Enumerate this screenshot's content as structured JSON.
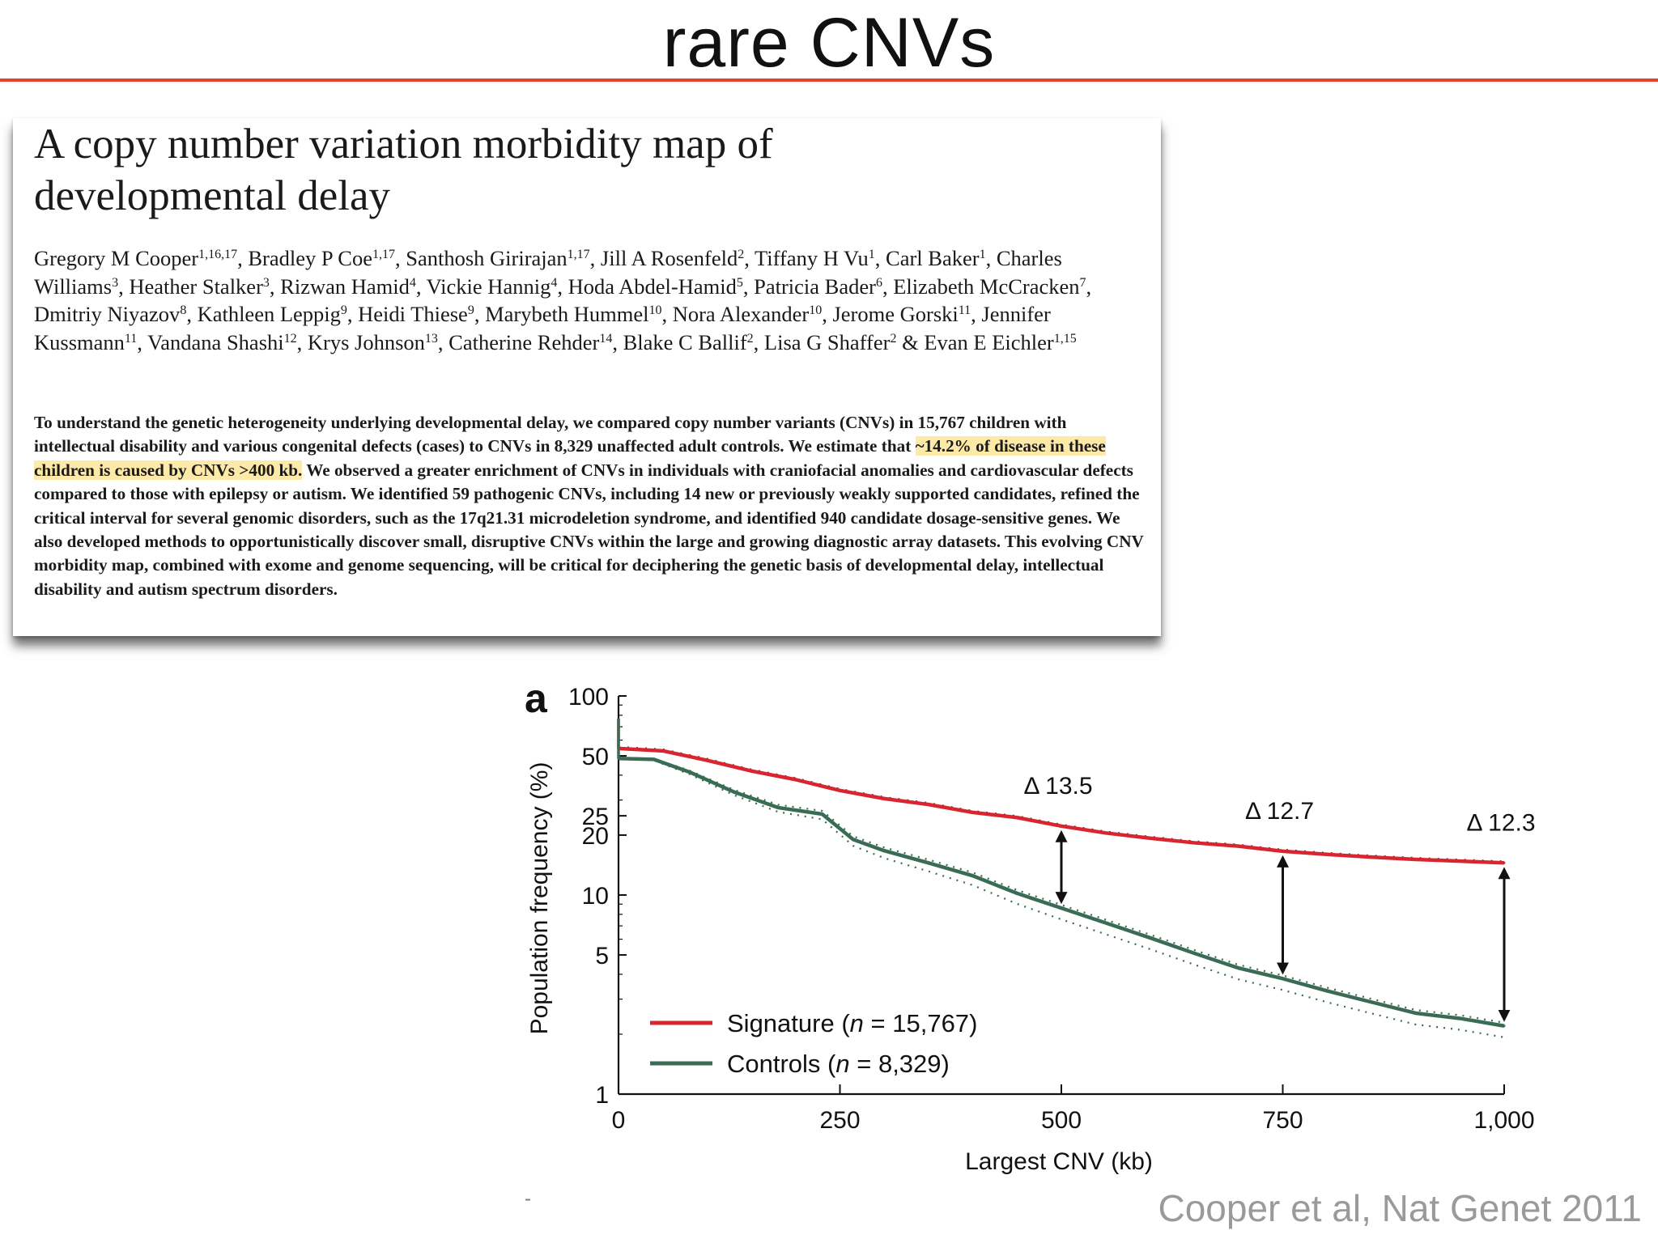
{
  "slide": {
    "title": "rare CNVs",
    "credit": "Cooper et al, Nat Genet 2011",
    "stray_mark": "-",
    "accent_color": "#e8402c"
  },
  "paper": {
    "title_line1": "A copy number variation morbidity map of",
    "title_line2": "developmental delay",
    "authors": [
      {
        "name": "Gregory M Cooper",
        "sup": "1,16,17",
        "sep": ", "
      },
      {
        "name": "Bradley P Coe",
        "sup": "1,17",
        "sep": ", "
      },
      {
        "name": "Santhosh Girirajan",
        "sup": "1,17",
        "sep": ", "
      },
      {
        "name": "Jill A Rosenfeld",
        "sup": "2",
        "sep": ", "
      },
      {
        "name": "Tiffany H Vu",
        "sup": "1",
        "sep": ", "
      },
      {
        "name": "Carl Baker",
        "sup": "1",
        "sep": ", "
      },
      {
        "name": "Charles Williams",
        "sup": "3",
        "sep": ", "
      },
      {
        "name": "Heather Stalker",
        "sup": "3",
        "sep": ", "
      },
      {
        "name": "Rizwan Hamid",
        "sup": "4",
        "sep": ", "
      },
      {
        "name": "Vickie Hannig",
        "sup": "4",
        "sep": ", "
      },
      {
        "name": "Hoda Abdel-Hamid",
        "sup": "5",
        "sep": ", "
      },
      {
        "name": "Patricia Bader",
        "sup": "6",
        "sep": ", "
      },
      {
        "name": "Elizabeth McCracken",
        "sup": "7",
        "sep": ", "
      },
      {
        "name": "Dmitriy Niyazov",
        "sup": "8",
        "sep": ", "
      },
      {
        "name": "Kathleen Leppig",
        "sup": "9",
        "sep": ", "
      },
      {
        "name": "Heidi Thiese",
        "sup": "9",
        "sep": ", "
      },
      {
        "name": "Marybeth Hummel",
        "sup": "10",
        "sep": ", "
      },
      {
        "name": "Nora Alexander",
        "sup": "10",
        "sep": ", "
      },
      {
        "name": "Jerome Gorski",
        "sup": "11",
        "sep": ", "
      },
      {
        "name": "Jennifer Kussmann",
        "sup": "11",
        "sep": ", "
      },
      {
        "name": "Vandana Shashi",
        "sup": "12",
        "sep": ", "
      },
      {
        "name": "Krys Johnson",
        "sup": "13",
        "sep": ", "
      },
      {
        "name": "Catherine Rehder",
        "sup": "14",
        "sep": ", "
      },
      {
        "name": "Blake C Ballif",
        "sup": "2",
        "sep": ", "
      },
      {
        "name": "Lisa G Shaffer",
        "sup": "2",
        "sep": " & "
      },
      {
        "name": "Evan E Eichler",
        "sup": "1,15",
        "sep": ""
      }
    ],
    "abstract_before": "To understand the genetic heterogeneity underlying developmental delay, we compared copy number variants (CNVs) in 15,767 children with intellectual disability and various congenital defects (cases) to CNVs in 8,329 unaffected adult controls. We estimate that ",
    "abstract_highlight": "~14.2% of disease in these children is caused by CNVs >400 kb.",
    "abstract_after": " We observed a greater enrichment of CNVs in individuals with craniofacial anomalies and cardiovascular defects compared to those with epilepsy or autism. We identified 59 pathogenic CNVs, including 14 new or previously weakly supported candidates, refined the critical interval for several genomic disorders, such as the 17q21.31 microdeletion syndrome, and identified 940 candidate dosage-sensitive genes. We also developed methods to opportunistically discover small, disruptive CNVs within the large and growing diagnostic array datasets. This evolving CNV morbidity map, combined with exome and genome sequencing, will be critical for deciphering the genetic basis of developmental delay, intellectual disability and autism spectrum disorders.",
    "highlight_color": "#fde9a8"
  },
  "chart_data": {
    "type": "line",
    "panel_label": "a",
    "xlabel": "Largest CNV (kb)",
    "ylabel": "Population frequency (%)",
    "xlim": [
      0,
      1000
    ],
    "ylim": [
      1,
      100
    ],
    "y_scale": "log",
    "x_ticks": [
      0,
      250,
      500,
      750,
      1000
    ],
    "x_tick_labels": [
      "0",
      "250",
      "500",
      "750",
      "1,000"
    ],
    "y_ticks": [
      1,
      5,
      10,
      20,
      25,
      50,
      100
    ],
    "y_tick_labels": [
      "1",
      "5",
      "10",
      "20",
      "25",
      "50",
      "100"
    ],
    "grid": false,
    "legend_position": "bottom-left",
    "series": [
      {
        "name": "Signature",
        "n_label": "n",
        "n_value": "= 15,767",
        "color": "#d7262f",
        "x": [
          0,
          50,
          100,
          150,
          200,
          250,
          300,
          350,
          400,
          450,
          500,
          550,
          600,
          650,
          700,
          750,
          800,
          850,
          900,
          950,
          1000
        ],
        "y": [
          54.5,
          53,
          47.5,
          42,
          38,
          33.5,
          30.5,
          28.5,
          26,
          24.5,
          22.2,
          20.5,
          19.3,
          18.3,
          17.6,
          16.6,
          16,
          15.5,
          15.1,
          14.8,
          14.5
        ]
      },
      {
        "name": "Controls",
        "n_label": "n",
        "n_value": "= 8,329",
        "color": "#3a6b55",
        "x": [
          0,
          40,
          80,
          130,
          180,
          230,
          265,
          300,
          350,
          400,
          450,
          500,
          540,
          600,
          650,
          700,
          750,
          800,
          850,
          900,
          950,
          1000
        ],
        "y": [
          48.5,
          48,
          41.5,
          33,
          27.5,
          25.5,
          19,
          16.7,
          14.5,
          12.5,
          10.2,
          8.6,
          7.5,
          6.1,
          5.1,
          4.3,
          3.8,
          3.3,
          2.9,
          2.55,
          2.4,
          2.2
        ]
      }
    ],
    "annotations": [
      {
        "text": "Δ 13.5",
        "x": 500,
        "y_top": 22.2,
        "y_bottom": 8.6
      },
      {
        "text": "Δ 12.7",
        "x": 750,
        "y_top": 16.6,
        "y_bottom": 3.8
      },
      {
        "text": "Δ 12.3",
        "x": 1000,
        "y_top": 14.5,
        "y_bottom": 2.2
      }
    ]
  }
}
